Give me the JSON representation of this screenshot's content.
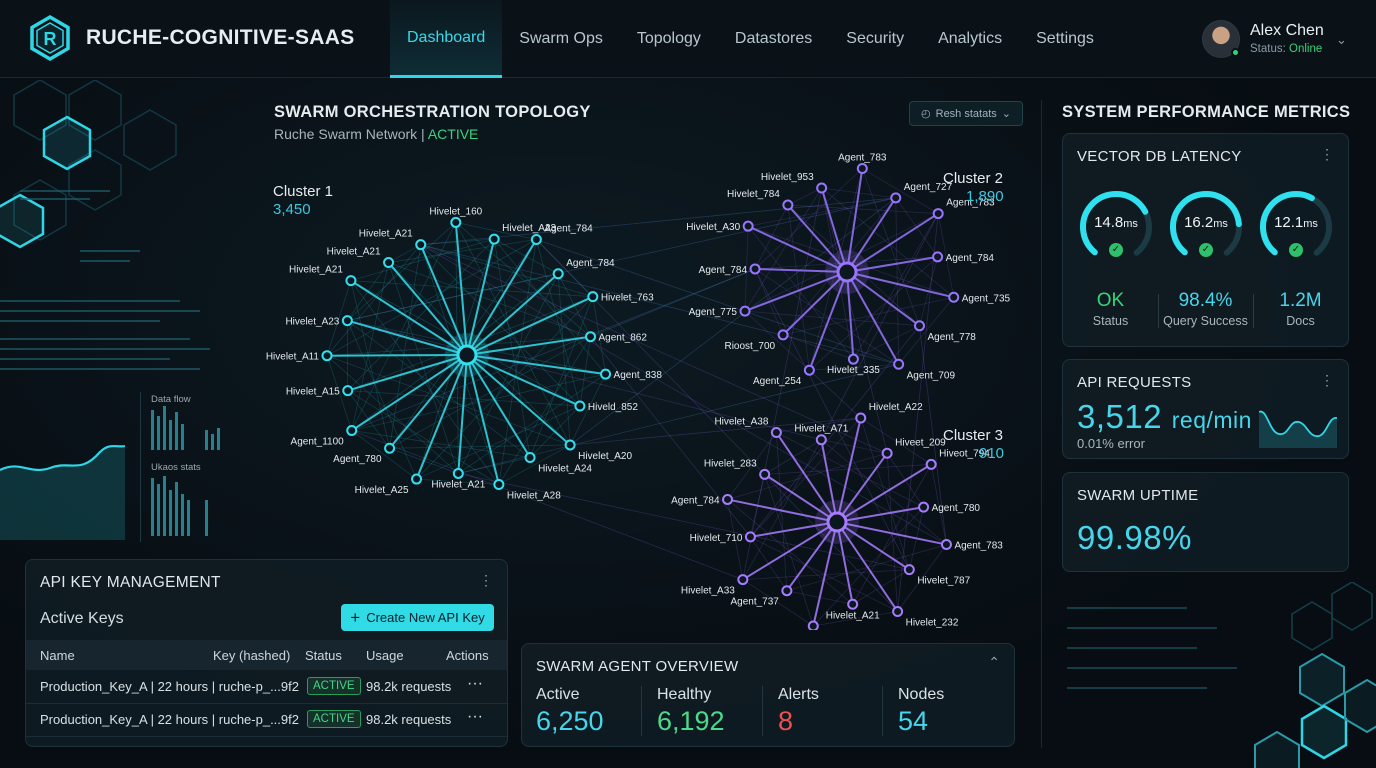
{
  "app": {
    "title": "RUCHE-COGNITIVE-SAAS",
    "logo_letter": "R"
  },
  "nav": {
    "items": [
      "Dashboard",
      "Swarm Ops",
      "Topology",
      "Datastores",
      "Security",
      "Analytics",
      "Settings"
    ],
    "active": "Dashboard"
  },
  "user": {
    "name": "Alex Chen",
    "status_label": "Status:",
    "status_value": "Online"
  },
  "decor": {
    "data_flow_label": "Data flow",
    "stats_label": "Ukaos stats"
  },
  "topology": {
    "title": "SWARM ORCHESTRATION TOPOLOGY",
    "subtitle_name": "Ruche Swarm Network |",
    "subtitle_status": "ACTIVE",
    "refresh_label": "Resh statats",
    "clusters": [
      {
        "name": "Cluster 1",
        "count": "3,450",
        "color": "#33e0ef",
        "nodes": [
          "Hivelet_A21",
          "Hivelet_160",
          "Hivelet_A23",
          "Agent_784",
          "Agent_784",
          "Hivelet_763",
          "Agent_862",
          "Agent_838",
          "Hiveld_852",
          "Hivelet_A20",
          "Hivelet_A24",
          "Hivelet_A28",
          "Hivelet_A21",
          "Hivelet_A25",
          "Agent_780",
          "Agent_1100",
          "Hivelet_A15",
          "Hivelet_A11",
          "Hivelet_A23",
          "Hivelet_A21",
          "Hivelet_A21"
        ]
      },
      {
        "name": "Cluster 2",
        "count": "1,890",
        "color": "#9a74ff",
        "nodes": [
          "Hivelet_953",
          "Agent_783",
          "Agent_727",
          "Agent_783",
          "Agent_784",
          "Agent_735",
          "Agent_778",
          "Agent_709",
          "Hivelet_335",
          "Agent_254",
          "Rioost_700",
          "Agent_775",
          "Agent_784",
          "Hivelet_A30",
          "Hivelet_784"
        ]
      },
      {
        "name": "Cluster 3",
        "count": "910",
        "color": "#a77bff",
        "nodes": [
          "Hivelet_A71",
          "Hivelet_A22",
          "Hiveet_209",
          "Hiveot_794",
          "Agent_780",
          "Agent_783",
          "Hivelet_787",
          "Hivelet_232",
          "Hivelet_A21",
          "Agent_793",
          "Agent_737",
          "Hivelet_A33",
          "Hivelet_710",
          "Agent_784",
          "Hivelet_283",
          "Hivelet_A38"
        ]
      }
    ]
  },
  "metrics": {
    "title": "SYSTEM PERFORMANCE METRICS",
    "vector_db": {
      "title": "VECTOR DB LATENCY",
      "gauges": [
        {
          "value": "14.8",
          "unit": "ms",
          "fill": 0.72
        },
        {
          "value": "16.2",
          "unit": "ms",
          "fill": 0.8
        },
        {
          "value": "12.1",
          "unit": "ms",
          "fill": 0.6
        }
      ],
      "stats": [
        {
          "value": "OK",
          "label": "Status",
          "color": "#38d47c"
        },
        {
          "value": "98.4%",
          "label": "Query Success",
          "color": "#46d5ea"
        },
        {
          "value": "1.2M",
          "label": "Docs",
          "color": "#46d5ea"
        }
      ]
    },
    "api_requests": {
      "title": "API REQUESTS",
      "value": "3,512",
      "unit": "req/min",
      "error": "0.01% error"
    },
    "uptime": {
      "title": "SWARM UPTIME",
      "value": "99.98%"
    }
  },
  "api_keys": {
    "title": "API KEY MANAGEMENT",
    "subtitle": "Active Keys",
    "create_label": "Create New API Key",
    "columns": [
      "Name",
      "Key (hashed)",
      "Status",
      "Usage",
      "Actions"
    ],
    "rows": [
      {
        "name": "Production_Key_A | 22 hours | ruche-p_...9f2",
        "status": "ACTIVE",
        "usage": "98.2k requests",
        "actions": "···"
      },
      {
        "name": "Production_Key_A | 22 hours | ruche-p_...9f2",
        "status": "ACTIVE",
        "usage": "98.2k requests",
        "actions": "···"
      }
    ]
  },
  "overview": {
    "title": "SWARM AGENT OVERVIEW",
    "stats": [
      {
        "label": "Active",
        "value": "6,250",
        "color": "#46d5ea"
      },
      {
        "label": "Healthy",
        "value": "6,192",
        "color": "#4ed98a"
      },
      {
        "label": "Alerts",
        "value": "8",
        "color": "#ef4f4f"
      },
      {
        "label": "Nodes",
        "value": "54",
        "color": "#46d5ea"
      }
    ]
  }
}
